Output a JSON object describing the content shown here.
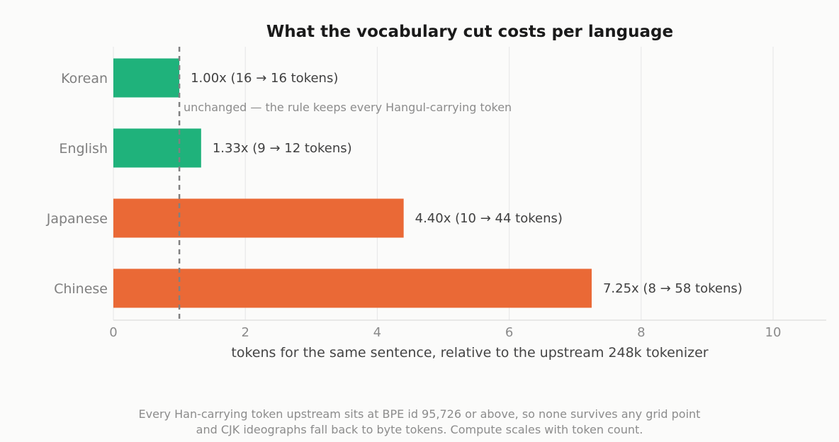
{
  "chart_data": {
    "type": "bar",
    "orientation": "horizontal",
    "title": "What the vocabulary cut costs per language",
    "xlabel": "tokens for the same sentence, relative to the upstream 248k tokenizer",
    "ylabel": "",
    "xlim": [
      0,
      11
    ],
    "xticks": [
      "0",
      "2",
      "4",
      "6",
      "8",
      "10"
    ],
    "grid": true,
    "reference_line": {
      "x": 1.0,
      "style": "dashed",
      "color": "#808080"
    },
    "categories": [
      "Korean",
      "English",
      "Japanese",
      "Chinese"
    ],
    "values": [
      1.0,
      1.33,
      4.4,
      7.25
    ],
    "bar_colors": [
      "#1fb27b",
      "#1fb27b",
      "#ea6936",
      "#ea6936"
    ],
    "data_labels": [
      "1.00x   (16 → 16 tokens)",
      "1.33x   (9 → 12 tokens)",
      "4.40x   (10 → 44 tokens)",
      "7.25x   (8 → 58 tokens)"
    ],
    "annotation": "unchanged — the rule keeps every Hangul-carrying token",
    "footnote": [
      "Every Han-carrying token upstream sits at BPE id 95,726 or above, so none survives any grid point",
      "and CJK ideographs fall back to byte tokens. Compute scales with token count."
    ]
  }
}
